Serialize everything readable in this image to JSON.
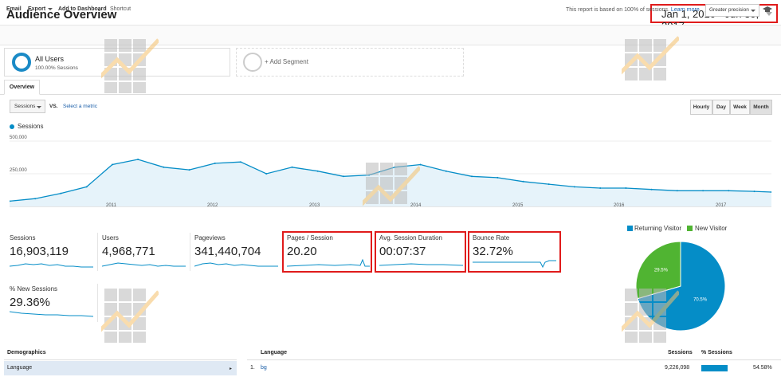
{
  "header": {
    "title": "Audience Overview",
    "date_range": "Jan 1, 2010 - Jun 30, 2017"
  },
  "toolbar": {
    "email": "Email",
    "export": "Export",
    "add_to_dashboard": "Add to Dashboard",
    "shortcut": "Shortcut",
    "sampling_note": "This report is based on 100% of sessions.",
    "learn_more": "Learn more",
    "precision": "Greater precision",
    "icons": {
      "precision_dropdown": "chevron-down-icon",
      "help": "graduation-cap-icon"
    }
  },
  "segments": {
    "active": {
      "name": "All Users",
      "sub": "100.00% Sessions"
    },
    "add_label": "+ Add Segment"
  },
  "tabs": [
    "Overview"
  ],
  "chart_controls": {
    "metric": "Sessions",
    "vs": "VS.",
    "select_metric": "Select a metric",
    "granularity": [
      "Hourly",
      "Day",
      "Week",
      "Month"
    ],
    "active_granularity": "Month"
  },
  "chart_data": {
    "type": "area",
    "series": [
      {
        "name": "Sessions",
        "color": "#058dc7"
      }
    ],
    "ytick_labels": [
      "500,000",
      "250,000"
    ],
    "yticks": [
      500000,
      250000
    ],
    "ylim": [
      0,
      500000
    ],
    "xtick_labels": [
      "2011",
      "2012",
      "2013",
      "2014",
      "2015",
      "2016",
      "2017"
    ],
    "x_range": [
      "2010-01",
      "2017-06"
    ],
    "x": [
      "2010-01",
      "2010-04",
      "2010-07",
      "2010-10",
      "2011-01",
      "2011-04",
      "2011-07",
      "2011-10",
      "2012-01",
      "2012-04",
      "2012-07",
      "2012-10",
      "2013-01",
      "2013-04",
      "2013-07",
      "2013-10",
      "2014-01",
      "2014-04",
      "2014-07",
      "2014-10",
      "2015-01",
      "2015-04",
      "2015-07",
      "2015-10",
      "2016-01",
      "2016-04",
      "2016-07",
      "2016-10",
      "2017-01",
      "2017-04",
      "2017-06"
    ],
    "values": [
      40000,
      60000,
      100000,
      150000,
      320000,
      360000,
      300000,
      280000,
      330000,
      340000,
      250000,
      300000,
      270000,
      230000,
      240000,
      300000,
      320000,
      270000,
      230000,
      220000,
      190000,
      170000,
      150000,
      140000,
      140000,
      130000,
      120000,
      120000,
      120000,
      115000,
      110000
    ]
  },
  "scorecards": [
    {
      "label": "Sessions",
      "value": "16,903,119"
    },
    {
      "label": "Users",
      "value": "4,968,771"
    },
    {
      "label": "Pageviews",
      "value": "341,440,704"
    },
    {
      "label": "Pages / Session",
      "value": "20.20"
    },
    {
      "label": "Avg. Session Duration",
      "value": "00:07:37"
    },
    {
      "label": "Bounce Rate",
      "value": "32.72%"
    },
    {
      "label": "% New Sessions",
      "value": "29.36%"
    }
  ],
  "pie": {
    "legend": [
      {
        "name": "Returning Visitor",
        "color": "#058dc7"
      },
      {
        "name": "New Visitor",
        "color": "#50b432"
      }
    ],
    "slices": [
      {
        "name": "Returning Visitor",
        "value": 70.5,
        "label": "70.5%",
        "color": "#058dc7"
      },
      {
        "name": "New Visitor",
        "value": 29.5,
        "label": "29.5%",
        "color": "#50b432"
      }
    ]
  },
  "demographics": {
    "header": "Demographics",
    "selected": "Language",
    "table": {
      "columns": [
        "Language",
        "Sessions",
        "% Sessions"
      ],
      "rows": [
        {
          "rank": "1.",
          "name": "bg",
          "sessions": "9,226,098",
          "pct": "54.58%",
          "pct_value": 54.58
        }
      ]
    }
  }
}
